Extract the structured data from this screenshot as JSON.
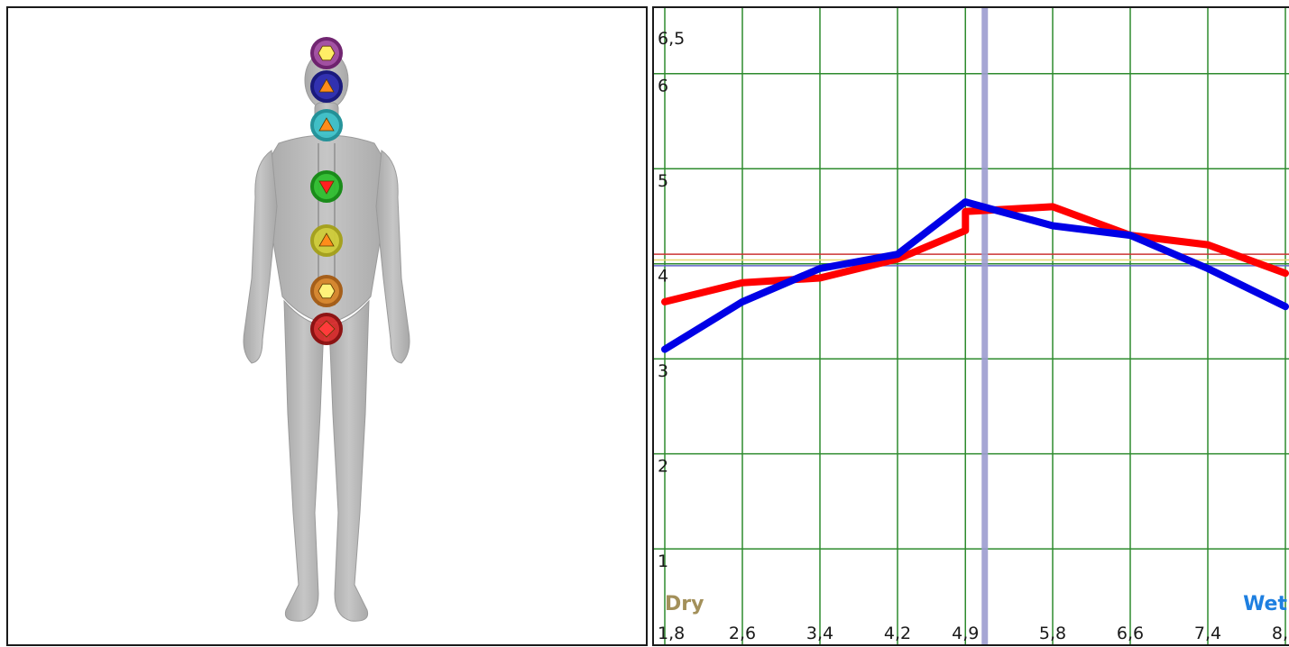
{
  "body_figure": {
    "chakras": [
      {
        "name": "crown",
        "ring": "#6a1b6a",
        "fill": "#a04aa0",
        "marker": "hexagon",
        "marker_color": "#ffee66"
      },
      {
        "name": "third-eye",
        "ring": "#12127a",
        "fill": "#2a2ab0",
        "marker": "triangle-up",
        "marker_color": "#ff8c1a"
      },
      {
        "name": "throat",
        "ring": "#1c8f96",
        "fill": "#3cc0c8",
        "marker": "triangle-up",
        "marker_color": "#ff8c1a"
      },
      {
        "name": "heart",
        "ring": "#128a12",
        "fill": "#2fbf2f",
        "marker": "triangle-down",
        "marker_color": "#ff2020"
      },
      {
        "name": "solar-plexus",
        "ring": "#a4a018",
        "fill": "#cfcc38",
        "marker": "triangle-up",
        "marker_color": "#ff8c1a"
      },
      {
        "name": "sacral",
        "ring": "#a45a12",
        "fill": "#d7852a",
        "marker": "hexagon",
        "marker_color": "#fff27a"
      },
      {
        "name": "root",
        "ring": "#8a0b0b",
        "fill": "#d42a2a",
        "marker": "diamond",
        "marker_color": "#ff3b3b"
      }
    ],
    "colors": {
      "skin": "#b9b9b9",
      "skin_shade": "#9e9e9e"
    }
  },
  "chart_data": {
    "type": "line",
    "y_tick_labels": [
      "1",
      "2",
      "3",
      "4",
      "5",
      "6",
      "6,5"
    ],
    "y_ticks": [
      1,
      2,
      3,
      4,
      5,
      6,
      6.5
    ],
    "x_tick_labels": [
      "1,8",
      "2,6",
      "3,4",
      "4,2",
      "4,9",
      "5,8",
      "6,6",
      "7,4",
      "8,2"
    ],
    "x_ticks": [
      1.8,
      2.6,
      3.4,
      4.2,
      4.9,
      5.8,
      6.6,
      7.4,
      8.2
    ],
    "xlim": [
      1.8,
      8.2
    ],
    "ylim": [
      0.3,
      6.5
    ],
    "grid": true,
    "grid_color": "#2e8b2e",
    "left_label": "Dry",
    "right_label": "Wet",
    "left_label_color": "#a3905a",
    "right_label_color": "#1e7fe0",
    "marker_x": 5.1,
    "marker_color": "#9d9dd0",
    "reference_lines": [
      {
        "y": 4.1,
        "color": "#cc3333"
      },
      {
        "y": 4.04,
        "color": "#e8d870"
      },
      {
        "y": 3.98,
        "color": "#6666cc"
      }
    ],
    "series": [
      {
        "color": "#ff0000",
        "x": [
          1.8,
          2.6,
          3.4,
          4.2,
          4.9,
          4.9,
          5.8,
          6.6,
          7.4,
          8.2
        ],
        "y": [
          3.6,
          3.8,
          3.85,
          4.05,
          4.35,
          4.55,
          4.6,
          4.3,
          4.2,
          3.9
        ]
      },
      {
        "color": "#0000e6",
        "x": [
          1.8,
          2.6,
          3.4,
          4.2,
          4.9,
          5.8,
          6.6,
          7.4,
          8.2
        ],
        "y": [
          3.1,
          3.6,
          3.95,
          4.1,
          4.65,
          4.4,
          4.3,
          3.95,
          3.55
        ]
      }
    ]
  }
}
